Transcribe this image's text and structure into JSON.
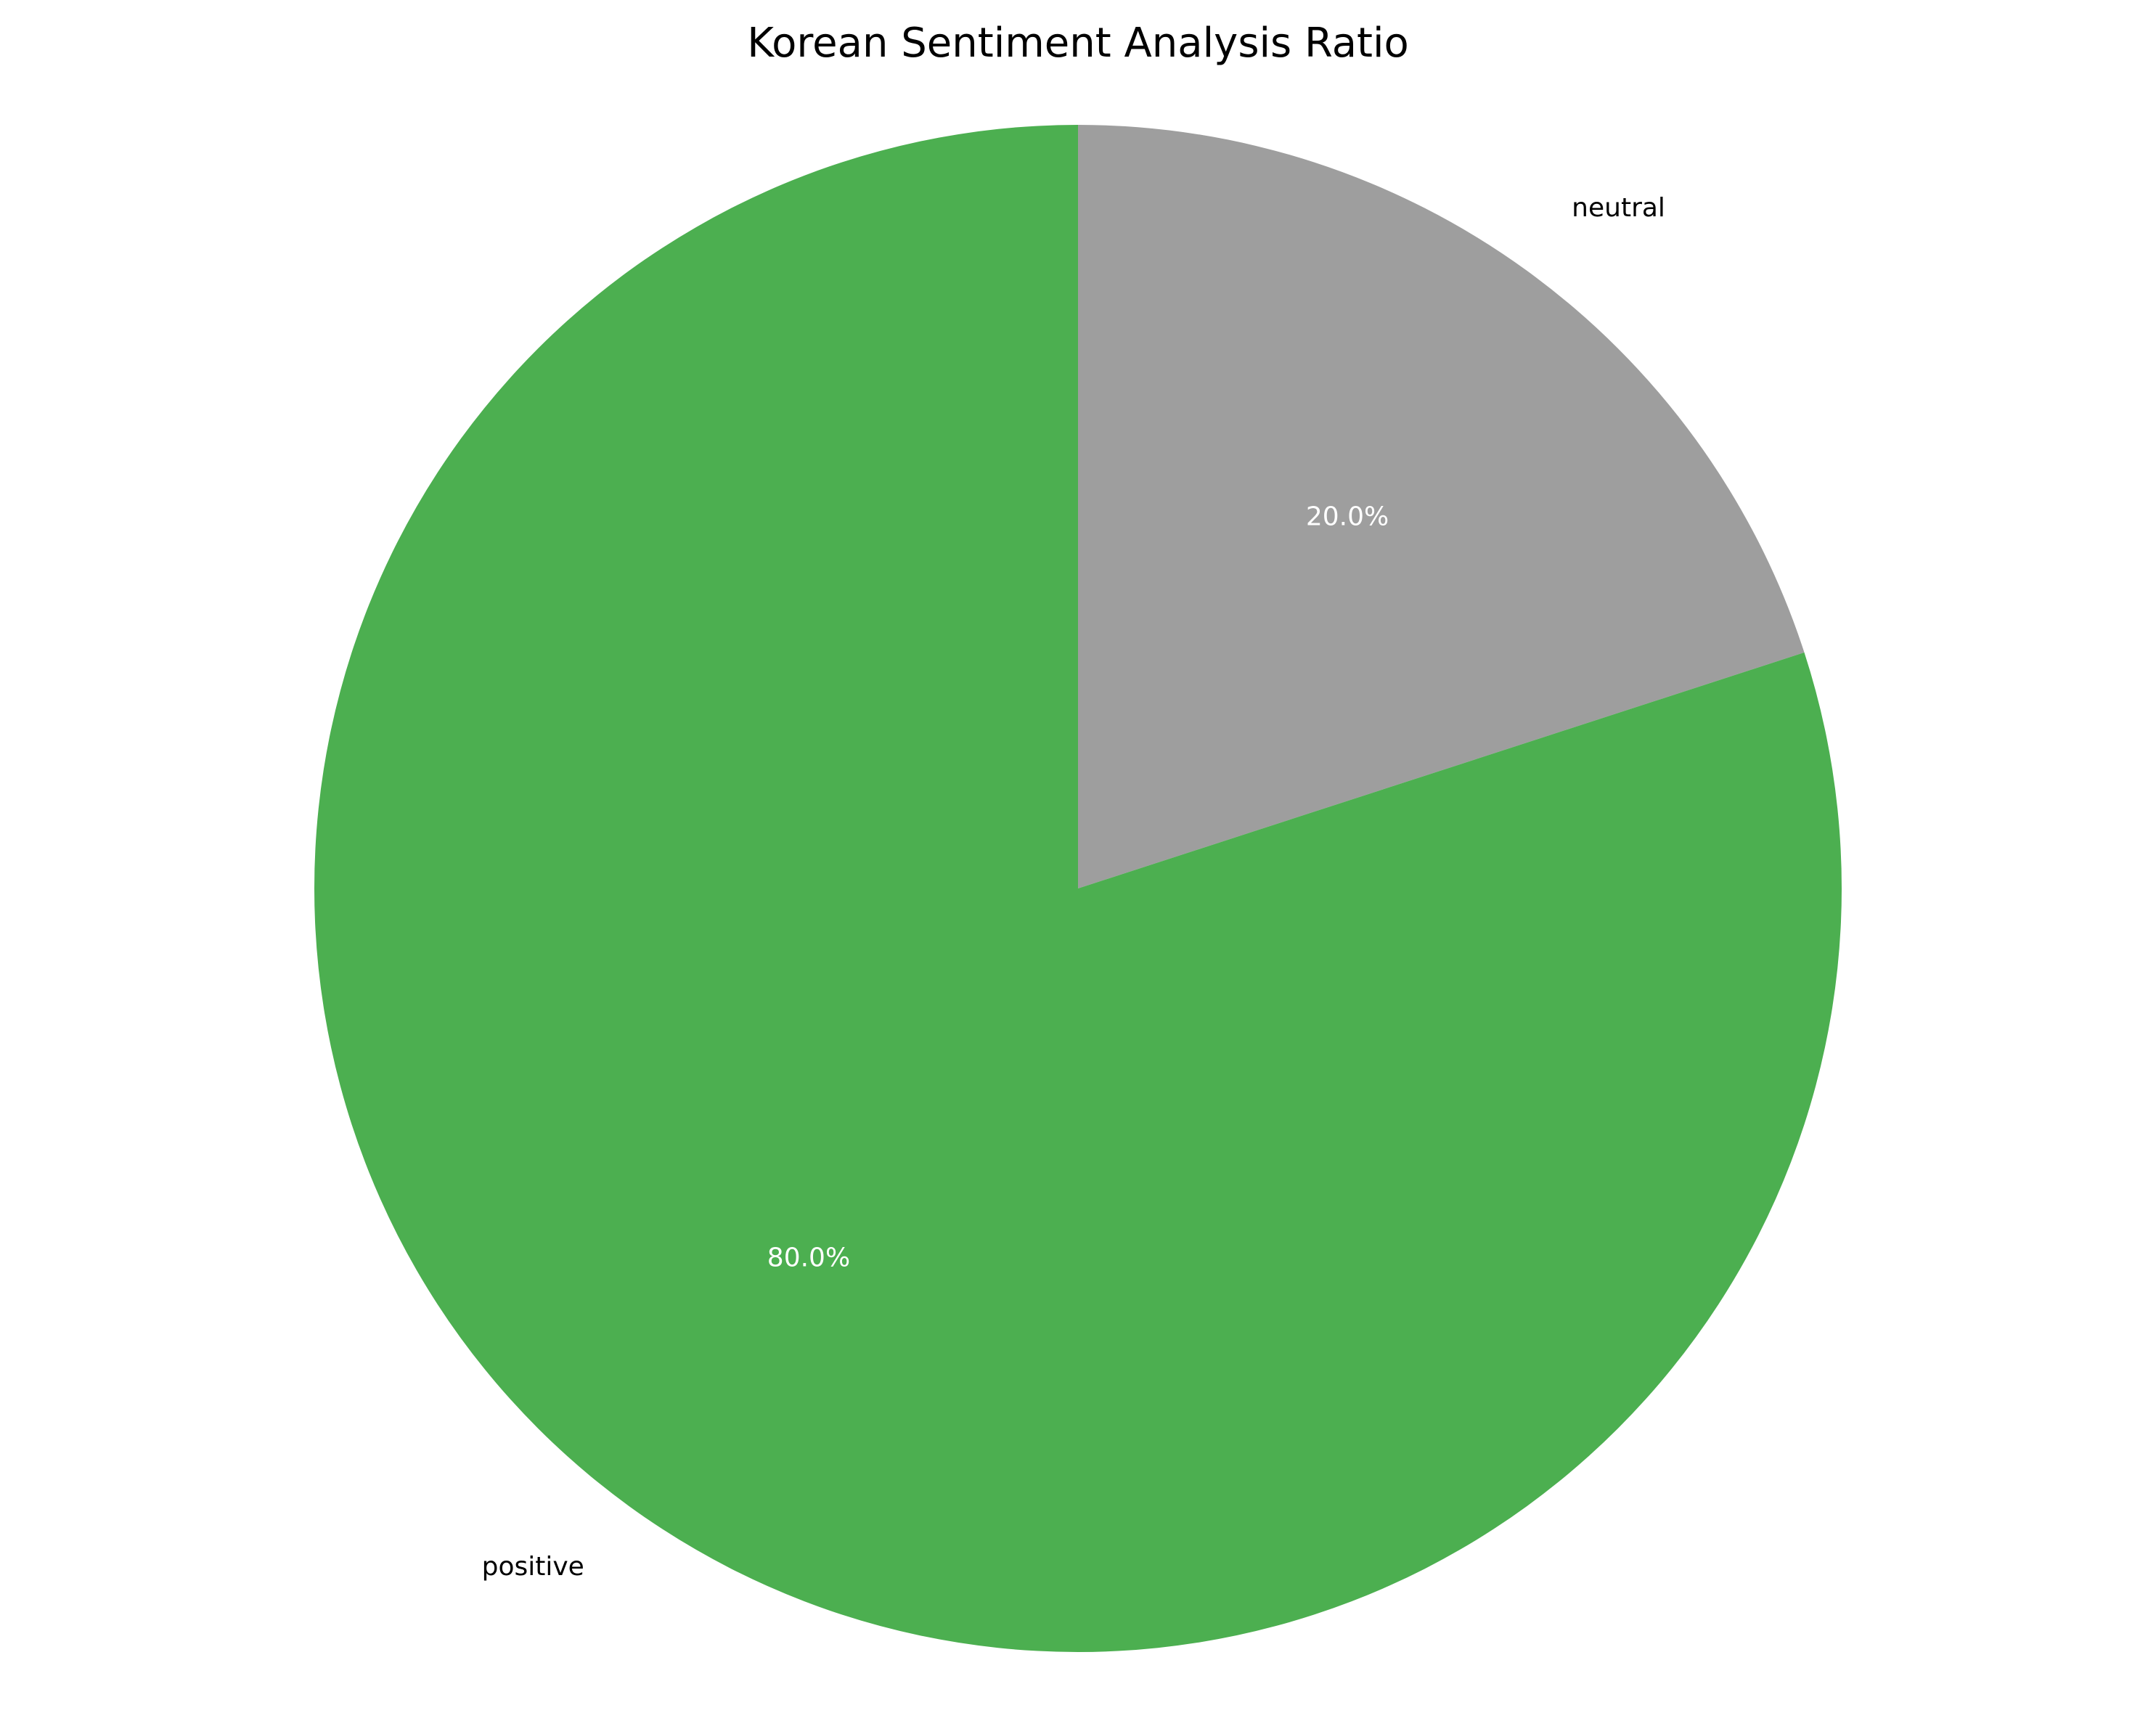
{
  "chart_data": {
    "type": "pie",
    "title": "Korean Sentiment Analysis Ratio",
    "slices": [
      {
        "label": "neutral",
        "value": 20.0,
        "pct_label": "20.0%",
        "color": "#9e9e9e"
      },
      {
        "label": "positive",
        "value": 80.0,
        "pct_label": "80.0%",
        "color": "#4caf50"
      }
    ],
    "start_angle_deg": 90,
    "direction": "clockwise",
    "legend": "none"
  }
}
